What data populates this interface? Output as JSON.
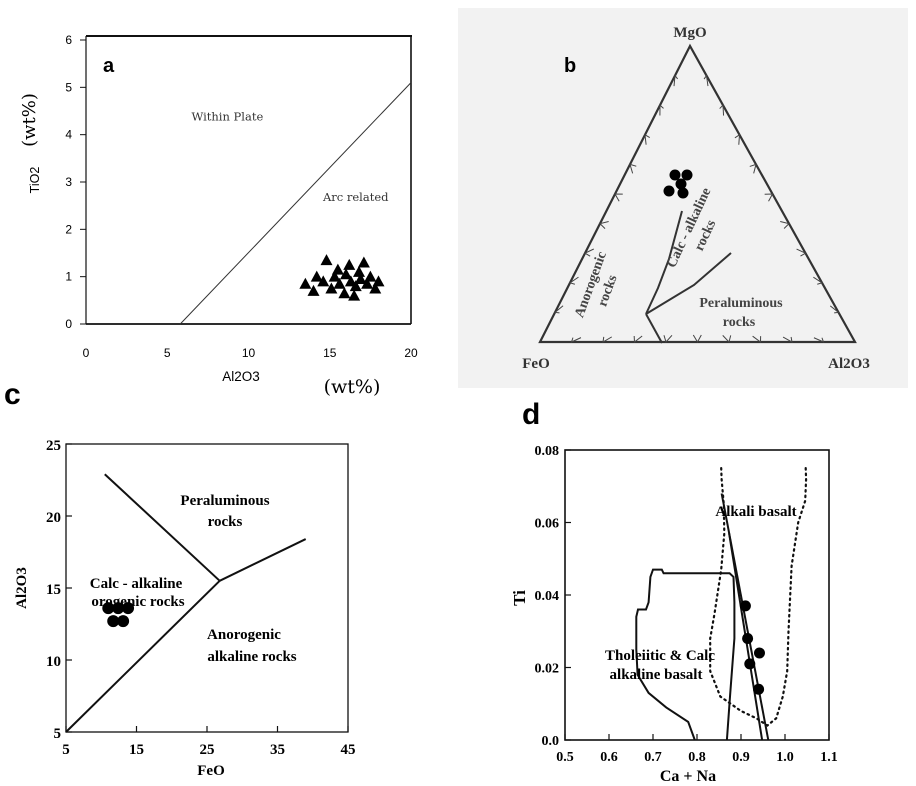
{
  "panels": {
    "a": {
      "label": "a",
      "chart_data": {
        "type": "scatter",
        "xlabel": "Al2O3",
        "ylabel": "TiO2",
        "xunit": "(wt%)",
        "yunit": "(wt%)",
        "xlim": [
          0,
          20
        ],
        "ylim": [
          0,
          6
        ],
        "xticks": [
          "0",
          "5",
          "10",
          "15",
          "20"
        ],
        "yticks": [
          "0",
          "1",
          "2",
          "3",
          "4",
          "5",
          "6"
        ],
        "regions": [
          {
            "label": "Within Plate",
            "x": 8.7,
            "y": 4.3
          },
          {
            "label": "Arc related",
            "x": 16.6,
            "y": 2.6
          }
        ],
        "boundary": [
          [
            5.8,
            0
          ],
          [
            20,
            5.1
          ]
        ],
        "marker": "triangle",
        "points": [
          [
            13.5,
            0.85
          ],
          [
            14.0,
            0.7
          ],
          [
            14.2,
            1.0
          ],
          [
            14.6,
            0.9
          ],
          [
            14.8,
            1.35
          ],
          [
            15.1,
            0.75
          ],
          [
            15.3,
            1.0
          ],
          [
            15.5,
            1.15
          ],
          [
            15.6,
            0.85
          ],
          [
            15.9,
            0.65
          ],
          [
            16.0,
            1.05
          ],
          [
            16.2,
            1.25
          ],
          [
            16.3,
            0.9
          ],
          [
            16.5,
            0.6
          ],
          [
            16.6,
            0.8
          ],
          [
            16.8,
            1.1
          ],
          [
            16.9,
            0.95
          ],
          [
            17.1,
            1.3
          ],
          [
            17.3,
            0.85
          ],
          [
            17.5,
            1.0
          ],
          [
            17.8,
            0.75
          ],
          [
            18.0,
            0.9
          ]
        ]
      }
    },
    "b": {
      "label": "b",
      "chart_data": {
        "type": "ternary",
        "apices": {
          "top": "MgO",
          "left": "FeO",
          "right": "Al2O3"
        },
        "regions": [
          {
            "label": "Anorogenic",
            "sub": "rocks"
          },
          {
            "label": "Calc - alkaline",
            "sub": "rocks"
          },
          {
            "label": "Peraluminous",
            "sub": "rocks"
          }
        ],
        "marker": "circle",
        "point_count": 5
      }
    },
    "c": {
      "label": "c",
      "chart_data": {
        "type": "scatter",
        "xlabel": "FeO",
        "ylabel": "Al2O3",
        "xlim": [
          5,
          45
        ],
        "ylim": [
          5,
          25
        ],
        "xticks": [
          "5",
          "15",
          "25",
          "35",
          "45"
        ],
        "yticks": [
          "5",
          "10",
          "15",
          "20",
          "25"
        ],
        "regions": [
          {
            "line1": "Peraluminous",
            "line2": "rocks"
          },
          {
            "line1": "Calc - alkaline",
            "line2": "orogenic rocks"
          },
          {
            "line1": "Anorogenic",
            "line2": "alkaline rocks"
          }
        ],
        "boundaries": [
          [
            [
              10.5,
              22.9
            ],
            [
              26.8,
              15.5
            ]
          ],
          [
            [
              26.8,
              15.5
            ],
            [
              39.0,
              18.4
            ]
          ],
          [
            [
              5.0,
              5.0
            ],
            [
              26.8,
              15.5
            ]
          ]
        ],
        "marker": "circle",
        "points": [
          [
            11.0,
            13.6
          ],
          [
            12.4,
            13.6
          ],
          [
            13.8,
            13.6
          ],
          [
            11.7,
            12.7
          ],
          [
            13.1,
            12.7
          ]
        ]
      }
    },
    "d": {
      "label": "d",
      "chart_data": {
        "type": "scatter",
        "xlabel": "Ca + Na",
        "ylabel": "Ti",
        "xlim": [
          0.5,
          1.1
        ],
        "ylim": [
          0,
          0.08
        ],
        "xticks": [
          "0.5",
          "0.6",
          "0.7",
          "0.8",
          "0.9",
          "1.0",
          "1.1"
        ],
        "yticks": [
          "0.0",
          "0.02",
          "0.04",
          "0.06",
          "0.08"
        ],
        "regions": [
          {
            "line1": "Alkali basalt",
            "line2": ""
          },
          {
            "line1": "Tholeiitic & Calc",
            "line2": "alkaline basalt"
          }
        ],
        "solid_field": [
          [
            0.795,
            0
          ],
          [
            0.78,
            0.005
          ],
          [
            0.73,
            0.009
          ],
          [
            0.69,
            0.013
          ],
          [
            0.665,
            0.018
          ],
          [
            0.662,
            0.025
          ],
          [
            0.662,
            0.034
          ],
          [
            0.666,
            0.036
          ],
          [
            0.684,
            0.036
          ],
          [
            0.69,
            0.038
          ],
          [
            0.694,
            0.045
          ],
          [
            0.7,
            0.047
          ],
          [
            0.72,
            0.047
          ],
          [
            0.724,
            0.046
          ],
          [
            0.874,
            0.046
          ],
          [
            0.883,
            0.045
          ],
          [
            0.885,
            0.038
          ],
          [
            0.885,
            0.028
          ],
          [
            0.875,
            0.012
          ],
          [
            0.868,
            0.0
          ]
        ],
        "dotted_field": [
          [
            0.855,
            0.075
          ],
          [
            0.856,
            0.072
          ],
          [
            0.861,
            0.065
          ],
          [
            0.862,
            0.057
          ],
          [
            0.855,
            0.047
          ],
          [
            0.84,
            0.035
          ],
          [
            0.83,
            0.028
          ],
          [
            0.83,
            0.019
          ],
          [
            0.853,
            0.012
          ],
          [
            0.9,
            0.008
          ],
          [
            0.935,
            0.006
          ],
          [
            0.96,
            0.004
          ],
          [
            0.98,
            0.006
          ],
          [
            0.995,
            0.012
          ],
          [
            1.005,
            0.019
          ],
          [
            1.008,
            0.03
          ],
          [
            1.015,
            0.048
          ],
          [
            1.03,
            0.06
          ],
          [
            1.046,
            0.066
          ],
          [
            1.048,
            0.072
          ],
          [
            1.047,
            0.075
          ]
        ],
        "trend_lines": [
          [
            [
              0.856,
              0.068
            ],
            [
              0.962,
              0.0
            ]
          ],
          [
            [
              0.873,
              0.057
            ],
            [
              0.948,
              0.0
            ]
          ]
        ],
        "marker": "circle",
        "points": [
          [
            0.91,
            0.037
          ],
          [
            0.915,
            0.028
          ],
          [
            0.942,
            0.024
          ],
          [
            0.92,
            0.021
          ],
          [
            0.94,
            0.014
          ]
        ]
      }
    }
  }
}
